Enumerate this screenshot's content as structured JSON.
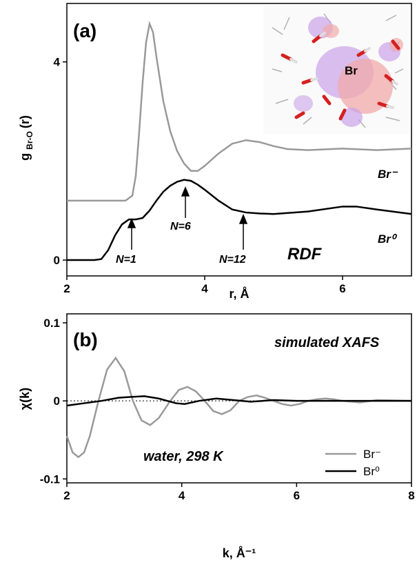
{
  "chart_data": [
    {
      "type": "line",
      "panel_label": "(a)",
      "x_label": "r, Å",
      "y_label": [
        "g",
        "Br-O",
        "(r)"
      ],
      "xlim": [
        2,
        7
      ],
      "ylim": [
        -0.32,
        5.18
      ],
      "xticks": [
        2,
        4,
        6
      ],
      "yticks": [
        0,
        4
      ],
      "legend": false,
      "inset_label": "Br",
      "annotations": [
        "N=1",
        "N=6",
        "N=12",
        "RDF"
      ],
      "series": [
        {
          "name": "Br⁻",
          "color": "#999999",
          "x": [
            2.0,
            2.5,
            2.85,
            2.95,
            3.0,
            3.05,
            3.1,
            3.15,
            3.2,
            3.25,
            3.3,
            3.4,
            3.5,
            3.6,
            3.7,
            3.8,
            3.9,
            4.0,
            4.2,
            4.4,
            4.6,
            4.8,
            5.0,
            5.2,
            5.5,
            6.0,
            6.5,
            7.0
          ],
          "values": [
            1.2,
            1.2,
            1.2,
            1.3,
            1.7,
            2.6,
            3.6,
            4.4,
            4.77,
            4.6,
            4.1,
            3.2,
            2.6,
            2.2,
            1.95,
            1.8,
            1.8,
            1.9,
            2.15,
            2.35,
            2.42,
            2.38,
            2.3,
            2.24,
            2.22,
            2.25,
            2.22,
            2.25
          ]
        },
        {
          "name": "Br⁰",
          "color": "#000000",
          "x": [
            2.0,
            2.4,
            2.5,
            2.6,
            2.7,
            2.8,
            2.9,
            3.0,
            3.1,
            3.2,
            3.3,
            3.4,
            3.5,
            3.6,
            3.7,
            3.8,
            3.9,
            4.0,
            4.2,
            4.4,
            4.6,
            4.8,
            5.0,
            5.5,
            6.0,
            6.2,
            6.5,
            7.0
          ],
          "values": [
            0,
            0,
            0.02,
            0.2,
            0.5,
            0.72,
            0.82,
            0.82,
            0.85,
            1.0,
            1.2,
            1.38,
            1.5,
            1.58,
            1.62,
            1.6,
            1.52,
            1.42,
            1.2,
            1.02,
            0.96,
            0.94,
            0.93,
            0.98,
            1.08,
            1.08,
            1.02,
            0.93
          ]
        }
      ]
    },
    {
      "type": "line",
      "panel_label": "(b)",
      "x_label": "k, Å⁻¹",
      "y_label": [
        "χ(k)"
      ],
      "xlim": [
        2,
        8
      ],
      "ylim": [
        -0.105,
        0.1115
      ],
      "xticks": [
        2,
        4,
        6,
        8
      ],
      "yticks": [
        -0.1,
        0,
        0.1
      ],
      "legend": "lower right",
      "zero_line": true,
      "annotations": [
        "simulated XAFS",
        "water, 298 K"
      ],
      "series": [
        {
          "name": "Br⁻",
          "color": "#999999",
          "x": [
            2.0,
            2.1,
            2.2,
            2.3,
            2.4,
            2.55,
            2.7,
            2.85,
            3.0,
            3.15,
            3.3,
            3.45,
            3.6,
            3.8,
            3.95,
            4.1,
            4.25,
            4.4,
            4.55,
            4.7,
            4.85,
            5.0,
            5.15,
            5.3,
            5.45,
            5.6,
            5.75,
            5.9,
            6.05,
            6.2,
            6.35,
            6.5,
            6.65,
            6.8,
            7.1,
            7.4,
            8.0
          ],
          "values": [
            -0.045,
            -0.066,
            -0.072,
            -0.066,
            -0.045,
            0,
            0.04,
            0.055,
            0.038,
            0,
            -0.025,
            -0.031,
            -0.022,
            0,
            0.014,
            0.018,
            0.012,
            0,
            -0.013,
            -0.017,
            -0.012,
            0,
            0.005,
            0.007,
            0.004,
            0,
            -0.004,
            -0.006,
            -0.004,
            0,
            0.002,
            0.003,
            0.002,
            0,
            -0.002,
            0.001,
            0
          ]
        },
        {
          "name": "Br⁰",
          "color": "#000000",
          "x": [
            2.0,
            2.3,
            2.6,
            2.9,
            3.1,
            3.35,
            3.6,
            3.75,
            3.9,
            4.05,
            4.3,
            4.6,
            4.9,
            5.2,
            5.6,
            6.0,
            8.0
          ],
          "values": [
            -0.006,
            -0.003,
            0,
            0.004,
            0.005,
            0.006,
            0.003,
            0,
            -0.003,
            -0.004,
            0,
            0.003,
            0.001,
            -0.001,
            0.001,
            0,
            0
          ]
        }
      ]
    }
  ]
}
